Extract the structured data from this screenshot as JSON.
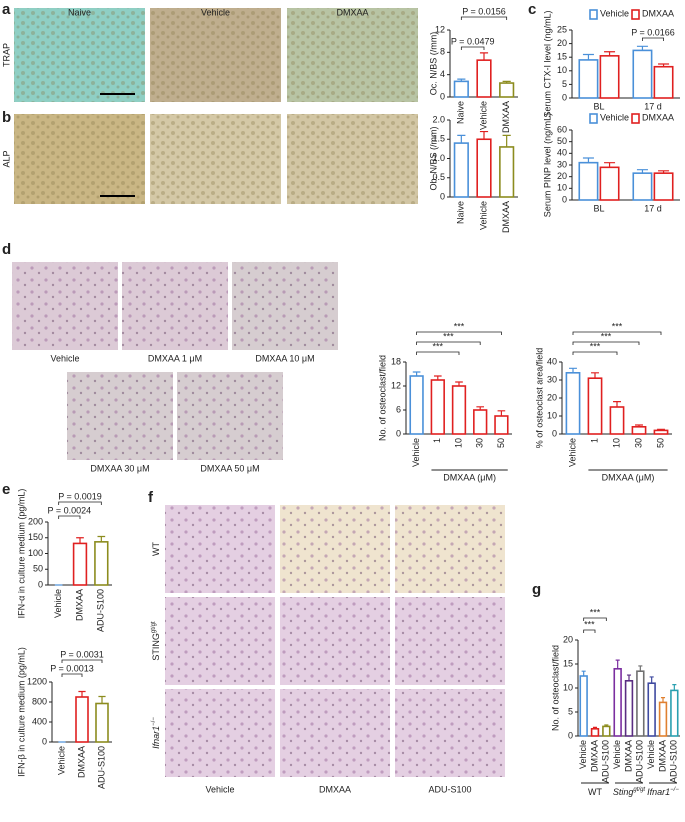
{
  "panel_labels": [
    "a",
    "b",
    "c",
    "d",
    "e",
    "f",
    "g"
  ],
  "a_images": {
    "columns": [
      "Naive",
      "Vehicle",
      "DMXAA"
    ],
    "rows": [
      "TRAP",
      "ALP"
    ]
  },
  "d_images": {
    "captions": [
      "Vehicle",
      "DMXAA 1 μM",
      "DMXAA 10 μM",
      "DMXAA 30 μM",
      "DMXAA 50 μM"
    ]
  },
  "f_images": {
    "rows": [
      {
        "name": "WT"
      },
      {
        "name": "STING",
        "sup": "gt/gt"
      },
      {
        "name": "Ifnar1",
        "sup": "−/−"
      }
    ],
    "columns": [
      "Vehicle",
      "DMXAA",
      "ADU-S100"
    ]
  },
  "chart_data": [
    {
      "type": "bar",
      "y_label": "Oc. N/BS (/mm)",
      "categories": [
        "Naive",
        "Vehicle",
        "DMXAA"
      ],
      "values": [
        2.8,
        6.6,
        2.5
      ],
      "errors": [
        0.4,
        1.3,
        0.3
      ],
      "colors": [
        "#4a90d9",
        "#e02020",
        "#8c8c1e"
      ],
      "ylim": [
        0,
        12
      ],
      "yticks": [
        0,
        4,
        8,
        12
      ],
      "annotations": [
        "P = 0.0479",
        "P = 0.0156"
      ]
    },
    {
      "type": "bar",
      "y_label": "Ob. N/BS (/mm)",
      "categories": [
        "Naive",
        "Vehicle",
        "DMXAA"
      ],
      "values": [
        1.4,
        1.5,
        1.3
      ],
      "errors": [
        0.2,
        0.2,
        0.3
      ],
      "colors": [
        "#4a90d9",
        "#e02020",
        "#8c8c1e"
      ],
      "ylim": [
        0,
        2
      ],
      "yticks": [
        0,
        0.5,
        {
          "value": 1,
          "label": "1.0"
        },
        1.5,
        {
          "value": 2,
          "label": "2.0"
        }
      ],
      "annotations": []
    },
    {
      "type": "grouped_bar",
      "y_label": "Serum CTX-I level (ng/mL)",
      "categories": [
        "BL",
        "17 d"
      ],
      "series": [
        {
          "name": "Vehicle",
          "color": "#4a90d9",
          "values": [
            14,
            17.5
          ],
          "errors": [
            2,
            1.5
          ]
        },
        {
          "name": "DMXAA",
          "color": "#e02020",
          "values": [
            15.5,
            11.5
          ],
          "errors": [
            1.5,
            1
          ]
        }
      ],
      "ylim": [
        0,
        25
      ],
      "yticks": [
        0,
        5,
        10,
        15,
        20,
        25
      ],
      "annotations": [
        "P = 0.0166"
      ]
    },
    {
      "type": "grouped_bar",
      "y_label": "Serum PINP level (ng/mL)",
      "categories": [
        "BL",
        "17 d"
      ],
      "series": [
        {
          "name": "Vehicle",
          "color": "#4a90d9",
          "values": [
            32,
            23
          ],
          "errors": [
            4,
            3
          ]
        },
        {
          "name": "DMXAA",
          "color": "#e02020",
          "values": [
            28,
            23
          ],
          "errors": [
            4,
            2
          ]
        }
      ],
      "ylim": [
        0,
        60
      ],
      "yticks": [
        0,
        10,
        20,
        30,
        40,
        50,
        60
      ],
      "annotations": []
    },
    {
      "type": "bar",
      "y_label": "No. of osteoclast/field",
      "x_label": "DMXAA (μM)",
      "categories": [
        "Vehicle",
        "1",
        "10",
        "30",
        "50"
      ],
      "values": [
        14.5,
        13.5,
        12,
        6,
        4.5
      ],
      "errors": [
        1,
        1,
        1,
        0.8,
        1.3
      ],
      "colors": [
        "#4a90d9",
        "#e02020",
        "#e02020",
        "#e02020",
        "#e02020"
      ],
      "ylim": [
        0,
        18
      ],
      "yticks": [
        0,
        6,
        12,
        18
      ],
      "annotations": [
        "***",
        "***",
        "***"
      ]
    },
    {
      "type": "bar",
      "y_label": "% of osteoclast area/field",
      "x_label": "DMXAA (μM)",
      "categories": [
        "Vehicle",
        "1",
        "10",
        "30",
        "50"
      ],
      "values": [
        34,
        31,
        15,
        4,
        2
      ],
      "errors": [
        2.5,
        3,
        3,
        1,
        0.6
      ],
      "colors": [
        "#4a90d9",
        "#e02020",
        "#e02020",
        "#e02020",
        "#e02020"
      ],
      "ylim": [
        0,
        40
      ],
      "yticks": [
        0,
        10,
        20,
        30,
        40
      ],
      "annotations": [
        "***",
        "***",
        "***"
      ]
    },
    {
      "type": "bar",
      "y_label": "IFN-α in culture medium (pg/mL)",
      "categories": [
        "Vehicle",
        "DMXAA",
        "ADU-S100"
      ],
      "values": [
        0,
        132,
        137
      ],
      "errors": [
        0,
        18,
        17
      ],
      "colors": [
        "#4a90d9",
        "#e02020",
        "#8c8c1e"
      ],
      "ylim": [
        0,
        200
      ],
      "yticks": [
        0,
        50,
        100,
        150,
        200
      ],
      "annotations": [
        "P = 0.0019",
        "P = 0.0024"
      ]
    },
    {
      "type": "bar",
      "y_label": "IFN-β in culture medium (pg/mL)",
      "categories": [
        "Vehicle",
        "DMXAA",
        "ADU-S100"
      ],
      "values": [
        0,
        900,
        770
      ],
      "errors": [
        0,
        110,
        140
      ],
      "colors": [
        "#4a90d9",
        "#e02020",
        "#8c8c1e"
      ],
      "ylim": [
        0,
        1200
      ],
      "yticks": [
        0,
        400,
        800,
        1200
      ],
      "annotations": [
        "P = 0.0031",
        "P = 0.0013"
      ]
    },
    {
      "type": "bar",
      "y_label": "No. of osteoclast/field",
      "categories": [
        "Vehicle",
        "DMXAA",
        "ADU-S100",
        "Vehicle",
        "DMXAA",
        "ADU-S100",
        "Vehicle",
        "DMXAA",
        "ADU-S100"
      ],
      "values": [
        12.5,
        1.5,
        2,
        14,
        11.5,
        13.5,
        11,
        7,
        9.5
      ],
      "errors": [
        1,
        0.3,
        0.3,
        1.8,
        1.2,
        1.1,
        1.3,
        1,
        1.2
      ],
      "colors": [
        "#4a90d9",
        "#e02020",
        "#8c8c1e",
        "#7b2fa0",
        "#5a2d82",
        "#707070",
        "#3f4aa0",
        "#e08030",
        "#2aa0b0"
      ],
      "ylim": [
        0,
        20
      ],
      "yticks": [
        0,
        5,
        10,
        15,
        20
      ],
      "groups": [
        {
          "name": "WT"
        },
        {
          "name": "Sting",
          "sup": "gt/gt"
        },
        {
          "name": "Ifnar1",
          "sup": "−/−"
        }
      ],
      "annotations": [
        "***",
        "***"
      ]
    }
  ]
}
